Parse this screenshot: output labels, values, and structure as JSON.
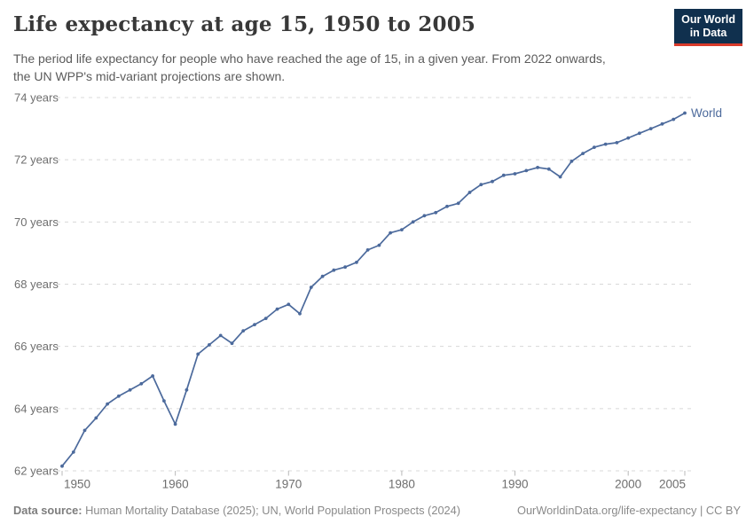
{
  "header": {
    "title": "Life expectancy at age 15, 1950 to 2005",
    "subtitle_lines": [
      "The period life expectancy for people who have reached the age of 15, in a given year. From 2022 onwards,",
      "the UN WPP's mid-variant projections are shown."
    ]
  },
  "logo": {
    "line1": "Our World",
    "line2": "in Data",
    "bg_color": "#10304e",
    "accent_color": "#d93a2b"
  },
  "footer": {
    "datasource_label": "Data source:",
    "datasource_text": " Human Mortality Database (2025); UN, World Population Prospects (2024)",
    "rights": "OurWorldinData.org/life-expectancy | CC BY"
  },
  "chart_data": {
    "type": "line",
    "title": "Life expectancy at age 15, 1950 to 2005",
    "xlabel": "",
    "ylabel": "",
    "xlim": [
      1950,
      2005
    ],
    "ylim": [
      62,
      74
    ],
    "xticks": [
      1950,
      1960,
      1970,
      1980,
      1990,
      2000,
      2005
    ],
    "yticks": [
      62,
      64,
      66,
      68,
      70,
      72,
      74
    ],
    "ytick_labels": [
      "62 years",
      "64 years",
      "66 years",
      "68 years",
      "70 years",
      "72 years",
      "74 years"
    ],
    "grid": "horizontal-dashed",
    "legend_position": "end-of-line",
    "x": [
      1950,
      1951,
      1952,
      1953,
      1954,
      1955,
      1956,
      1957,
      1958,
      1959,
      1960,
      1961,
      1962,
      1963,
      1964,
      1965,
      1966,
      1967,
      1968,
      1969,
      1970,
      1971,
      1972,
      1973,
      1974,
      1975,
      1976,
      1977,
      1978,
      1979,
      1980,
      1981,
      1982,
      1983,
      1984,
      1985,
      1986,
      1987,
      1988,
      1989,
      1990,
      1991,
      1992,
      1993,
      1994,
      1995,
      1996,
      1997,
      1998,
      1999,
      2000,
      2001,
      2002,
      2003,
      2004,
      2005
    ],
    "series": [
      {
        "name": "World",
        "color": "#4c6a9c",
        "values": [
          62.15,
          62.6,
          63.3,
          63.7,
          64.15,
          64.4,
          64.6,
          64.8,
          65.05,
          64.25,
          63.5,
          64.6,
          65.75,
          66.05,
          66.35,
          66.1,
          66.5,
          66.7,
          66.9,
          67.2,
          67.35,
          67.05,
          67.9,
          68.25,
          68.45,
          68.55,
          68.7,
          69.1,
          69.25,
          69.65,
          69.75,
          70.0,
          70.2,
          70.3,
          70.5,
          70.6,
          70.95,
          71.2,
          71.3,
          71.5,
          71.55,
          71.65,
          71.75,
          71.7,
          71.45,
          71.95,
          72.2,
          72.4,
          72.5,
          72.55,
          72.7,
          72.85,
          73.0,
          73.15,
          73.3,
          73.5
        ]
      }
    ],
    "colors": {
      "grid": "#d8d8d8",
      "tick_label": "#6e6e6e",
      "tick_mark": "#b8b8b8"
    }
  }
}
